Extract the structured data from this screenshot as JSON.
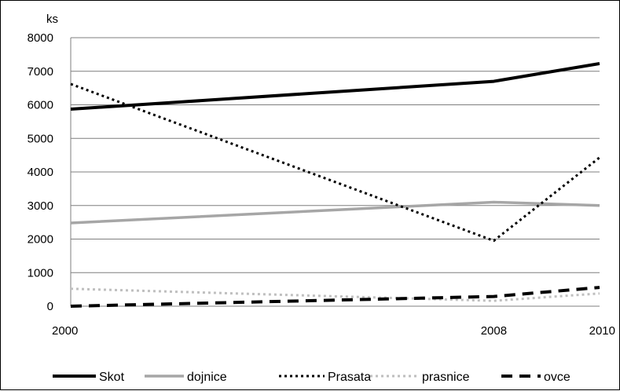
{
  "chart_data": {
    "type": "line",
    "ylabel": "ks",
    "categories": [
      "2000",
      "2008",
      "2010"
    ],
    "ylim": [
      0,
      8000
    ],
    "y_ticks": [
      0,
      1000,
      2000,
      3000,
      4000,
      5000,
      6000,
      7000,
      8000
    ],
    "grid": "horizontal",
    "legend_position": "bottom",
    "series": [
      {
        "name": "Skot",
        "values": [
          5870,
          6700,
          7230
        ],
        "color": "#000000",
        "style": "solid-thick"
      },
      {
        "name": "dojnice",
        "values": [
          2480,
          3100,
          3000
        ],
        "color": "#a6a6a6",
        "style": "solid"
      },
      {
        "name": "Prasata",
        "values": [
          6620,
          1950,
          4430
        ],
        "color": "#000000",
        "style": "dotted"
      },
      {
        "name": "prasnice",
        "values": [
          520,
          160,
          380
        ],
        "color": "#bfbfbf",
        "style": "dotted"
      },
      {
        "name": "ovce",
        "values": [
          0,
          290,
          560
        ],
        "color": "#000000",
        "style": "dashed"
      }
    ]
  }
}
